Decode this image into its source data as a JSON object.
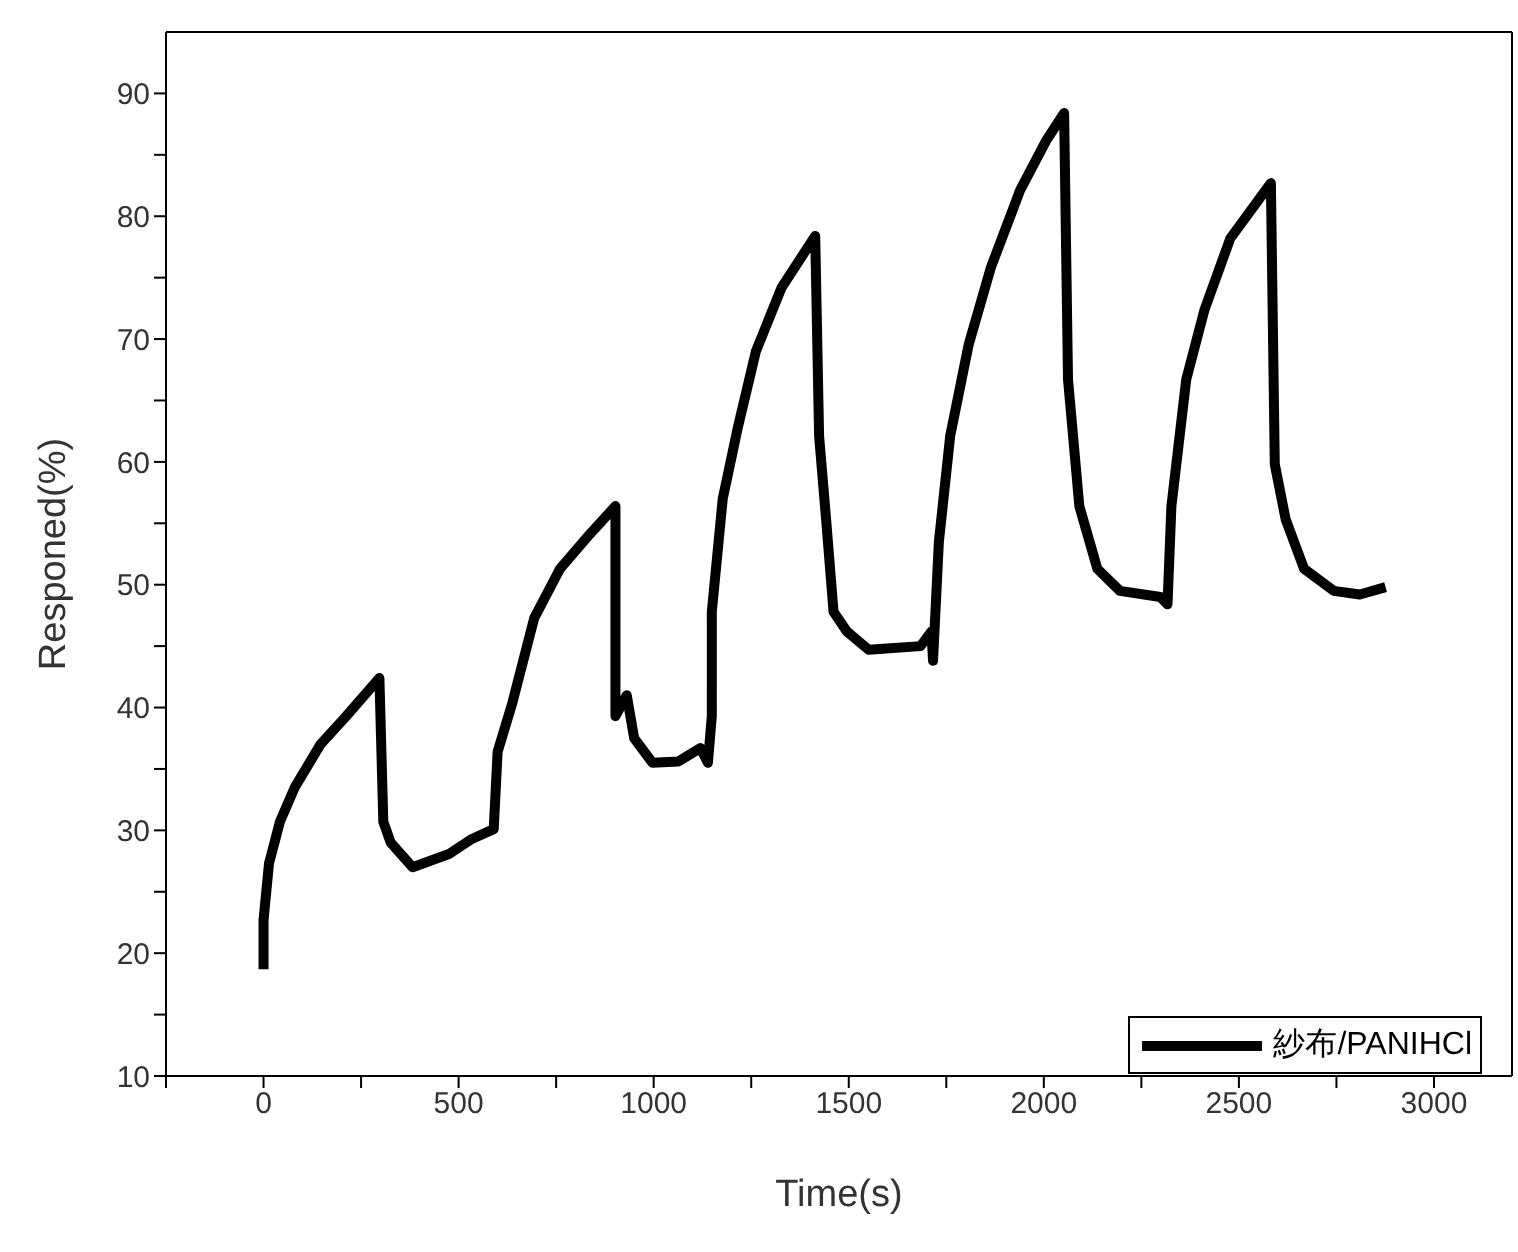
{
  "chart_data": {
    "type": "line",
    "xlabel": "Time(s)",
    "ylabel": "Responed(%)",
    "legend": "bottom right",
    "marker": "none",
    "line_style": "solid",
    "xlim": [
      -250,
      3200
    ],
    "ylim": [
      10,
      95
    ],
    "xticks": [
      {
        "value": -250,
        "label": null
      },
      0,
      {
        "value": 250,
        "label": null
      },
      500,
      {
        "value": 750,
        "label": null
      },
      1000,
      {
        "value": 1250,
        "label": null
      },
      1500,
      {
        "value": 1750,
        "label": null
      },
      2000,
      {
        "value": 2250,
        "label": null
      },
      2500,
      {
        "value": 2750,
        "label": null
      },
      3000
    ],
    "yticks": [
      10,
      {
        "value": 15,
        "label": null
      },
      20,
      {
        "value": 25,
        "label": null
      },
      30,
      {
        "value": 35,
        "label": null
      },
      40,
      {
        "value": 45,
        "label": null
      },
      50,
      {
        "value": 55,
        "label": null
      },
      60,
      {
        "value": 65,
        "label": null
      },
      70,
      {
        "value": 75,
        "label": null
      },
      80,
      {
        "value": 85,
        "label": null
      },
      90
    ],
    "series": [
      {
        "name": "紗布/PANIHCl",
        "color": "#000000",
        "x": [
          0,
          0,
          14,
          42,
          80,
          146,
          212,
          297,
          307,
          326,
          382,
          477,
          534,
          590,
          600,
          638,
          694,
          760,
          836,
          902,
          902,
          931,
          950,
          997,
          1063,
          1120,
          1139,
          1149,
          1149,
          1177,
          1215,
          1262,
          1328,
          1414,
          1424,
          1442,
          1461,
          1495,
          1551,
          1684,
          1712,
          1716,
          1731,
          1760,
          1807,
          1864,
          1939,
          2005,
          2052,
          2062,
          2091,
          2137,
          2195,
          2299,
          2317,
          2327,
          2365,
          2412,
          2478,
          2582,
          2592,
          2620,
          2667,
          2743,
          2810,
          2876
        ],
        "values": [
          18.7,
          22.7,
          27.3,
          30.7,
          33.5,
          37,
          39.3,
          42.4,
          30.7,
          29,
          27,
          28.1,
          29.3,
          30.1,
          36.4,
          40.4,
          47.3,
          51.3,
          54.1,
          56.4,
          39.3,
          41,
          37.5,
          35.5,
          35.6,
          36.7,
          35.5,
          39.3,
          47.8,
          57,
          62.7,
          69,
          74.2,
          78.4,
          62.1,
          55.3,
          47.8,
          46.2,
          44.7,
          45,
          46.2,
          43.8,
          53.5,
          62.1,
          69.5,
          75.8,
          82.1,
          86.1,
          88.4,
          66.7,
          56.4,
          51.3,
          49.5,
          49,
          48.4,
          56.4,
          66.7,
          72.4,
          78.2,
          82.7,
          59.8,
          55.3,
          51.3,
          49.5,
          49.2,
          49.8
        ]
      }
    ]
  }
}
